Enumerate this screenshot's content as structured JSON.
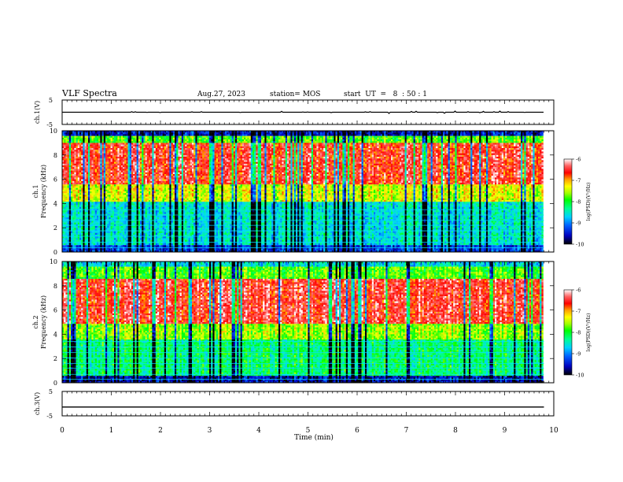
{
  "header": {
    "title": "VLF Spectra",
    "date": "Aug.27, 2023",
    "station": "station= MOS",
    "start": "start  UT  =   8  : 50 : 1"
  },
  "chart_data": [
    {
      "type": "line",
      "name": "ch.1 waveform",
      "ylabel": "ch.1(V)",
      "ylim": [
        -5,
        5
      ],
      "yticks": [
        "5",
        "-5"
      ],
      "xlim": [
        0,
        10
      ],
      "series": [
        {
          "x": [
            0,
            9.8
          ],
          "values": [
            0,
            0
          ]
        }
      ]
    },
    {
      "type": "heatmap",
      "name": "ch.1 spectrogram",
      "ylabel": "ch.1\nFrequency (kHz)",
      "xlim": [
        0,
        10
      ],
      "ylim": [
        0,
        10
      ],
      "yticks": [
        "0",
        "2",
        "4",
        "6",
        "8",
        "10"
      ],
      "data_extent_min": 9.8,
      "colorbar": {
        "range": [
          -10,
          -6
        ],
        "ticks": [
          "-6",
          "-7",
          "-8",
          "-9",
          "-10"
        ],
        "label": "log(PSD)(V²/Hz)"
      }
    },
    {
      "type": "heatmap",
      "name": "ch.2 spectrogram",
      "ylabel": "ch.2\nFrequency (kHz)",
      "xlim": [
        0,
        10
      ],
      "ylim": [
        0,
        10
      ],
      "yticks": [
        "0",
        "2",
        "4",
        "6",
        "8",
        "10"
      ],
      "data_extent_min": 9.8,
      "colorbar": {
        "range": [
          -10,
          -6
        ],
        "ticks": [
          "-6",
          "-7",
          "-8",
          "-9",
          "-10"
        ],
        "label": "log(PSD)(V²/Hz)"
      }
    },
    {
      "type": "line",
      "name": "ch.3 waveform",
      "ylabel": "ch.3(V)",
      "ylim": [
        -5,
        5
      ],
      "yticks": [
        "5",
        "-5"
      ],
      "xlim": [
        0,
        10
      ],
      "xlabel": "Time (min)",
      "xticks": [
        "0",
        "1",
        "2",
        "3",
        "4",
        "5",
        "6",
        "7",
        "8",
        "9",
        "10"
      ],
      "series": [
        {
          "x": [
            0,
            9.8
          ],
          "values": [
            -1.4,
            -1.4
          ]
        }
      ]
    }
  ],
  "colors": {
    "colormap": [
      "#000080",
      "#0000ff",
      "#00a0ff",
      "#00ffff",
      "#00ff80",
      "#00ff00",
      "#80ff00",
      "#ffff00",
      "#ffa000",
      "#ff0000",
      "#ff6060",
      "#ffffff"
    ]
  }
}
